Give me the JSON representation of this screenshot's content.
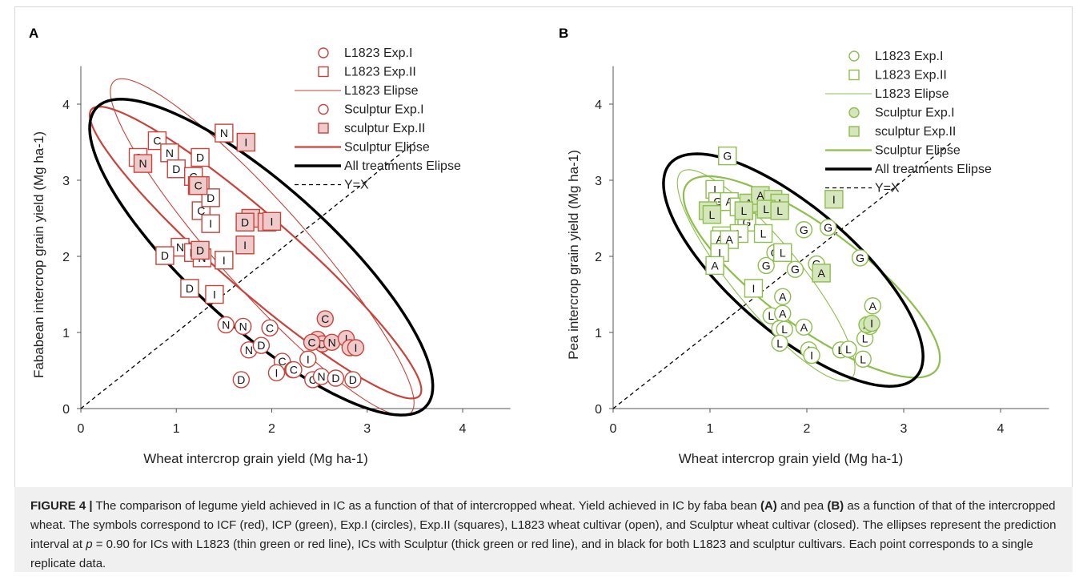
{
  "colors": {
    "red": "#c9433a",
    "red_fill": "#efcaca",
    "green": "#8cbf4b",
    "green_fill": "#d5e6bd",
    "black": "#000000"
  },
  "caption": {
    "label": "FIGURE 4 |",
    "text_1": " The comparison of legume yield achieved in IC as a function of that of intercropped wheat. Yield achieved in IC by faba bean ",
    "ref_a": "(A)",
    "text_2": " and pea ",
    "ref_b": "(B)",
    "text_3": " as a function of that of the intercropped wheat. The symbols correspond to ICF (red), ICP (green), Exp.I (circles), Exp.II (squares), L1823 wheat cultivar (open), and Sculptur wheat cultivar (closed). The ellipses represent the prediction interval at ",
    "p_symbol": "p",
    "text_4": " = 0.90 for ICs with L1823 (thin green or red line), ICs with Sculptur (thick green or red line), and in black for both L1823 and sculptur cultivars. Each point corresponds to a single replicate data."
  },
  "chart_data": [
    {
      "panel": "A",
      "type": "scatter",
      "color": "red",
      "xlabel": "Wheat intercrop grain yield (Mg ha-1)",
      "ylabel": "Fababean intercrop grain yield (Mg ha-1)",
      "xlim": [
        0,
        4.5
      ],
      "ylim": [
        0,
        4.5
      ],
      "xticks": [
        "0",
        "1",
        "2",
        "3",
        "4"
      ],
      "yticks": [
        "0",
        "1",
        "2",
        "3",
        "4"
      ],
      "legend_position": "top-right",
      "legend": [
        "L1823 Exp.I",
        "L1823 Exp.II",
        "L1823 Elipse",
        "Sculptur Exp.I",
        "sculptur Exp.II",
        "Sculptur Elipse",
        "All treatments Elipse",
        "Y=X"
      ],
      "ellipses": [
        {
          "series": "L1823 Elipse",
          "cx": 1.9,
          "cy": 2.12,
          "a": 2.68,
          "b": 0.5,
          "angle_deg": -55
        },
        {
          "series": "Sculptur Elipse",
          "cx": 1.83,
          "cy": 2.05,
          "a": 2.55,
          "b": 0.44,
          "angle_deg": -48
        },
        {
          "series": "All treatments Elipse",
          "cx": 1.89,
          "cy": 1.99,
          "a": 2.62,
          "b": 0.82,
          "angle_deg": -50
        }
      ],
      "series": [
        {
          "name": "L1823 Exp.I",
          "marker": "circle",
          "filled": false,
          "points": [
            {
              "x": 1.52,
              "y": 1.1,
              "label": "N"
            },
            {
              "x": 1.7,
              "y": 1.08,
              "label": "N"
            },
            {
              "x": 1.98,
              "y": 1.06,
              "label": "C"
            },
            {
              "x": 1.76,
              "y": 0.77,
              "label": "N"
            },
            {
              "x": 1.89,
              "y": 0.83,
              "label": "D"
            },
            {
              "x": 2.11,
              "y": 0.62,
              "label": "C"
            },
            {
              "x": 2.05,
              "y": 0.47,
              "label": "I"
            },
            {
              "x": 2.22,
              "y": 0.51,
              "label": "I"
            },
            {
              "x": 2.23,
              "y": 0.51,
              "label": "C"
            },
            {
              "x": 2.38,
              "y": 0.65,
              "label": "I"
            },
            {
              "x": 2.43,
              "y": 0.38,
              "label": "C"
            },
            {
              "x": 2.52,
              "y": 0.42,
              "label": "N"
            },
            {
              "x": 2.67,
              "y": 0.4,
              "label": "D"
            },
            {
              "x": 2.85,
              "y": 0.38,
              "label": "D"
            },
            {
              "x": 1.68,
              "y": 0.38,
              "label": "D"
            }
          ]
        },
        {
          "name": "L1823 Exp.II",
          "marker": "square",
          "filled": false,
          "points": [
            {
              "x": 0.6,
              "y": 3.3,
              "label": "C"
            },
            {
              "x": 0.8,
              "y": 3.52,
              "label": "C"
            },
            {
              "x": 0.93,
              "y": 3.36,
              "label": "N"
            },
            {
              "x": 1.0,
              "y": 3.15,
              "label": "D"
            },
            {
              "x": 1.18,
              "y": 3.05,
              "label": "C"
            },
            {
              "x": 1.22,
              "y": 2.93,
              "label": "N"
            },
            {
              "x": 1.25,
              "y": 3.3,
              "label": "D"
            },
            {
              "x": 1.25,
              "y": 2.93,
              "label": "C"
            },
            {
              "x": 1.26,
              "y": 2.6,
              "label": "C"
            },
            {
              "x": 1.36,
              "y": 2.43,
              "label": "I"
            },
            {
              "x": 1.36,
              "y": 2.77,
              "label": "D"
            },
            {
              "x": 1.04,
              "y": 2.12,
              "label": "N"
            },
            {
              "x": 0.88,
              "y": 2.01,
              "label": "D"
            },
            {
              "x": 1.18,
              "y": 2.05,
              "label": "D"
            },
            {
              "x": 1.27,
              "y": 1.98,
              "label": "N"
            },
            {
              "x": 1.5,
              "y": 1.95,
              "label": "I"
            },
            {
              "x": 1.14,
              "y": 1.58,
              "label": "D"
            },
            {
              "x": 1.4,
              "y": 1.5,
              "label": "I"
            },
            {
              "x": 1.5,
              "y": 3.62,
              "label": "N"
            }
          ]
        },
        {
          "name": "Sculptur Exp.I",
          "marker": "circle",
          "filled": true,
          "points": [
            {
              "x": 2.48,
              "y": 0.91,
              "label": "N"
            },
            {
              "x": 2.53,
              "y": 0.85,
              "label": "D"
            },
            {
              "x": 2.56,
              "y": 1.18,
              "label": "C"
            },
            {
              "x": 2.63,
              "y": 0.87,
              "label": "N"
            },
            {
              "x": 2.78,
              "y": 0.92,
              "label": "I"
            },
            {
              "x": 2.82,
              "y": 0.8,
              "label": "I"
            },
            {
              "x": 2.88,
              "y": 0.8,
              "label": "I"
            },
            {
              "x": 2.42,
              "y": 0.87,
              "label": "C"
            }
          ]
        },
        {
          "name": "sculptur Exp.II",
          "marker": "square",
          "filled": true,
          "points": [
            {
              "x": 0.65,
              "y": 3.22,
              "label": "N"
            },
            {
              "x": 1.23,
              "y": 2.93,
              "label": "C"
            },
            {
              "x": 1.25,
              "y": 2.08,
              "label": "D"
            },
            {
              "x": 1.73,
              "y": 3.5,
              "label": "I"
            },
            {
              "x": 1.78,
              "y": 2.5,
              "label": "D"
            },
            {
              "x": 1.72,
              "y": 2.45,
              "label": "D"
            },
            {
              "x": 1.95,
              "y": 2.45,
              "label": "I"
            },
            {
              "x": 1.72,
              "y": 2.15,
              "label": "I"
            },
            {
              "x": 2.0,
              "y": 2.46,
              "label": "I"
            }
          ]
        }
      ]
    },
    {
      "panel": "B",
      "type": "scatter",
      "color": "green",
      "xlabel": "Wheat intercrop grain yield (Mg ha-1)",
      "ylabel": "Pea intercrop grain yield (Mg ha-1)",
      "xlim": [
        0,
        4.5
      ],
      "ylim": [
        0,
        4.5
      ],
      "xticks": [
        "0",
        "1",
        "2",
        "3",
        "4"
      ],
      "yticks": [
        "0",
        "1",
        "2",
        "3",
        "4"
      ],
      "legend_position": "top-right",
      "legend": [
        "L1823 Exp.I",
        "L1823 Exp.II",
        "L1823 Elipse",
        "Sculptur Exp.I",
        "sculptur Exp.II",
        "Sculptur Elipse",
        "All treatments Elipse",
        "Y=X"
      ],
      "ellipses": [
        {
          "series": "L1823 Elipse",
          "cx": 1.58,
          "cy": 1.75,
          "a": 1.62,
          "b": 0.38,
          "angle_deg": -58
        },
        {
          "series": "Sculptur Elipse",
          "cx": 2.05,
          "cy": 1.73,
          "a": 1.78,
          "b": 0.58,
          "angle_deg": -45
        },
        {
          "series": "All treatments Elipse",
          "cx": 1.86,
          "cy": 1.82,
          "a": 1.9,
          "b": 0.72,
          "angle_deg": -50
        }
      ],
      "series": [
        {
          "name": "L1823 Exp.I",
          "marker": "circle",
          "filled": false,
          "points": [
            {
              "x": 1.58,
              "y": 1.88,
              "label": "G"
            },
            {
              "x": 1.67,
              "y": 2.05,
              "label": "G"
            },
            {
              "x": 1.88,
              "y": 1.83,
              "label": "G"
            },
            {
              "x": 1.97,
              "y": 2.35,
              "label": "G"
            },
            {
              "x": 2.22,
              "y": 2.38,
              "label": "G"
            },
            {
              "x": 2.1,
              "y": 1.9,
              "label": "G"
            },
            {
              "x": 1.75,
              "y": 1.47,
              "label": "A"
            },
            {
              "x": 1.63,
              "y": 1.22,
              "label": "L"
            },
            {
              "x": 1.75,
              "y": 1.25,
              "label": "A"
            },
            {
              "x": 1.72,
              "y": 1.05,
              "label": "I"
            },
            {
              "x": 1.77,
              "y": 1.04,
              "label": "L"
            },
            {
              "x": 1.97,
              "y": 1.07,
              "label": "A"
            },
            {
              "x": 1.72,
              "y": 0.86,
              "label": "L"
            },
            {
              "x": 2.02,
              "y": 0.77,
              "label": "A"
            },
            {
              "x": 2.05,
              "y": 0.7,
              "label": "I"
            },
            {
              "x": 2.35,
              "y": 0.77,
              "label": "L"
            },
            {
              "x": 2.43,
              "y": 0.78,
              "label": "L"
            },
            {
              "x": 2.58,
              "y": 0.65,
              "label": "L"
            },
            {
              "x": 2.6,
              "y": 0.92,
              "label": "L"
            },
            {
              "x": 2.65,
              "y": 1.08,
              "label": "A"
            },
            {
              "x": 2.68,
              "y": 1.35,
              "label": "A"
            },
            {
              "x": 2.55,
              "y": 1.98,
              "label": "G"
            }
          ]
        },
        {
          "name": "L1823 Exp.II",
          "marker": "square",
          "filled": false,
          "points": [
            {
              "x": 1.18,
              "y": 3.32,
              "label": "G"
            },
            {
              "x": 1.05,
              "y": 2.88,
              "label": "I"
            },
            {
              "x": 1.08,
              "y": 2.72,
              "label": "G"
            },
            {
              "x": 1.2,
              "y": 2.72,
              "label": "A"
            },
            {
              "x": 1.3,
              "y": 2.65,
              "label": "L"
            },
            {
              "x": 1.43,
              "y": 2.7,
              "label": "L"
            },
            {
              "x": 1.35,
              "y": 2.52,
              "label": "G"
            },
            {
              "x": 1.38,
              "y": 2.45,
              "label": "G"
            },
            {
              "x": 1.3,
              "y": 2.3,
              "label": "L"
            },
            {
              "x": 1.55,
              "y": 2.3,
              "label": "L"
            },
            {
              "x": 1.12,
              "y": 2.27,
              "label": "G"
            },
            {
              "x": 1.1,
              "y": 2.22,
              "label": "A"
            },
            {
              "x": 1.2,
              "y": 2.22,
              "label": "A"
            },
            {
              "x": 1.1,
              "y": 2.05,
              "label": "I"
            },
            {
              "x": 1.05,
              "y": 1.88,
              "label": "A"
            },
            {
              "x": 1.45,
              "y": 1.58,
              "label": "I"
            },
            {
              "x": 1.75,
              "y": 2.05,
              "label": "L"
            }
          ]
        },
        {
          "name": "Sculptur Exp.I",
          "marker": "circle",
          "filled": true,
          "points": [
            {
              "x": 2.62,
              "y": 1.1,
              "label": "A"
            },
            {
              "x": 2.67,
              "y": 1.12,
              "label": "I"
            }
          ]
        },
        {
          "name": "sculptur Exp.II",
          "marker": "square",
          "filled": true,
          "points": [
            {
              "x": 0.98,
              "y": 2.6,
              "label": "G"
            },
            {
              "x": 1.02,
              "y": 2.55,
              "label": "L"
            },
            {
              "x": 1.4,
              "y": 2.7,
              "label": "A"
            },
            {
              "x": 1.52,
              "y": 2.8,
              "label": "A"
            },
            {
              "x": 1.65,
              "y": 2.75,
              "label": "I"
            },
            {
              "x": 1.72,
              "y": 2.7,
              "label": "I"
            },
            {
              "x": 1.58,
              "y": 2.62,
              "label": "L"
            },
            {
              "x": 1.72,
              "y": 2.6,
              "label": "L"
            },
            {
              "x": 2.28,
              "y": 2.75,
              "label": "I"
            },
            {
              "x": 2.15,
              "y": 1.78,
              "label": "A"
            },
            {
              "x": 1.35,
              "y": 2.6,
              "label": "L"
            }
          ]
        }
      ]
    }
  ]
}
